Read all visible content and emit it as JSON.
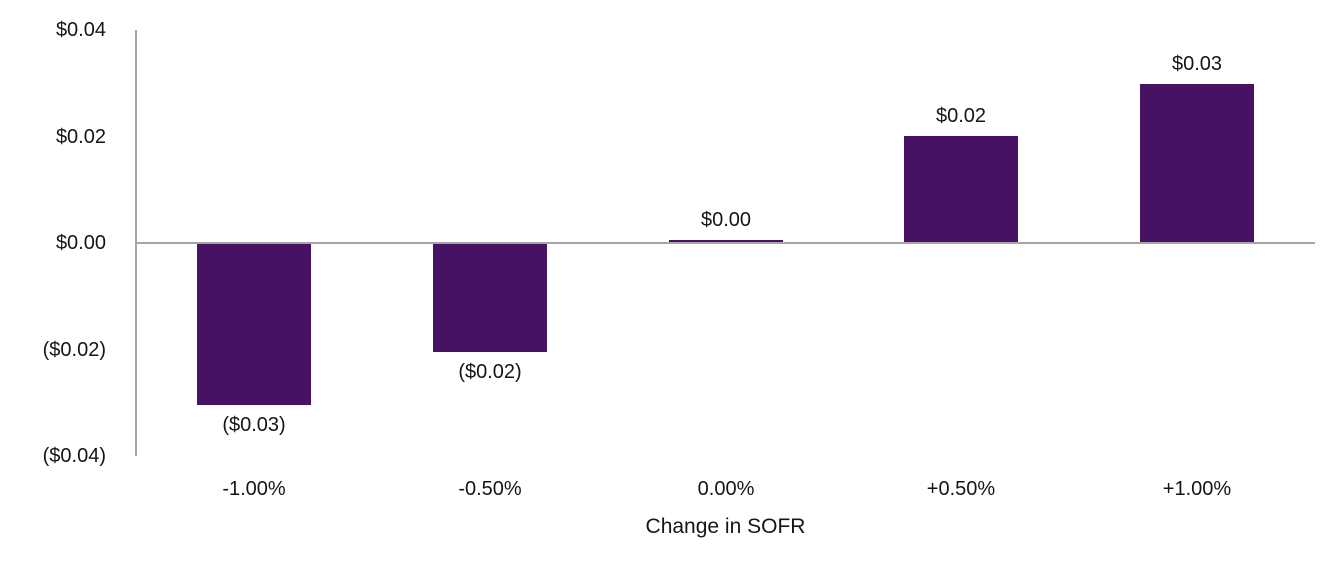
{
  "chart_data": {
    "type": "bar",
    "title": "",
    "xlabel": "Change in SOFR",
    "ylabel": "",
    "categories": [
      "-1.00%",
      "-0.50%",
      "0.00%",
      "+0.50%",
      "+1.00%"
    ],
    "values": [
      -0.0302,
      -0.0202,
      0.0004,
      0.0199,
      0.0296
    ],
    "data_labels": [
      "($0.03)",
      "($0.02)",
      "$0.00",
      "$0.02",
      "$0.03"
    ],
    "y_tick_labels": [
      "$0.04",
      "$0.02",
      "$0.00",
      "($0.02)",
      "($0.04)"
    ],
    "y_tick_values": [
      0.04,
      0.02,
      0,
      -0.02,
      -0.04
    ],
    "ylim": [
      -0.04,
      0.04
    ],
    "grid": false,
    "legend": "none",
    "colors": {
      "bar": "#471263",
      "axis_line": "#A6A6A6",
      "text": "#151515"
    }
  }
}
